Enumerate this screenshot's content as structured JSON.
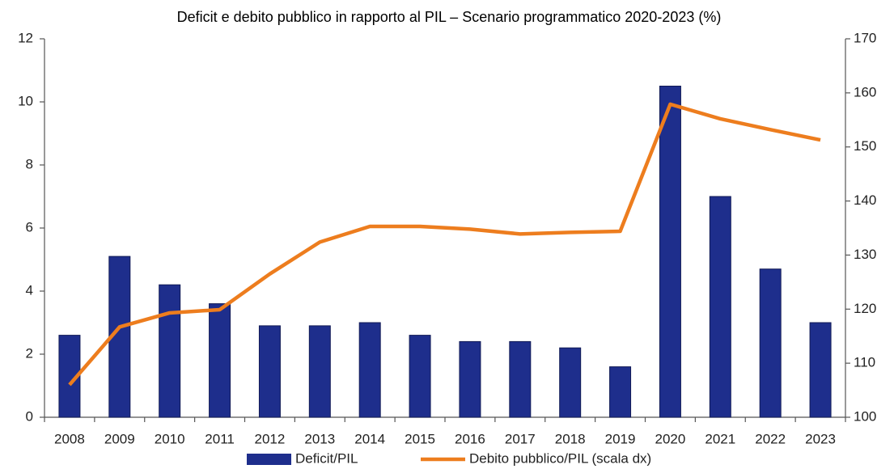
{
  "chart_data": {
    "type": "bar_line",
    "title": "Deficit e debito pubblico in rapporto al PIL – Scenario programmatico 2020-2023 (%)",
    "categories": [
      "2008",
      "2009",
      "2010",
      "2011",
      "2012",
      "2013",
      "2014",
      "2015",
      "2016",
      "2017",
      "2018",
      "2019",
      "2020",
      "2021",
      "2022",
      "2023"
    ],
    "series": [
      {
        "name": "Deficit/PIL",
        "type": "bar",
        "color": "#1e2e8c",
        "axis": "y",
        "values": [
          2.6,
          5.1,
          4.2,
          3.6,
          2.9,
          2.9,
          3.0,
          2.6,
          2.4,
          2.4,
          2.2,
          1.6,
          10.5,
          7.0,
          4.7,
          3.0
        ]
      },
      {
        "name": "Debito pubblico/PIL (scala dx)",
        "type": "line",
        "color": "#ed7d1e",
        "axis": "y2",
        "values": [
          106.0,
          116.7,
          119.3,
          119.9,
          126.5,
          132.4,
          135.3,
          135.3,
          134.8,
          133.9,
          134.2,
          134.4,
          157.9,
          155.2,
          153.2,
          151.3
        ]
      }
    ],
    "ylim": [
      0,
      12
    ],
    "yticks": [
      0,
      2,
      4,
      6,
      8,
      10,
      12
    ],
    "y2lim": [
      100,
      170
    ],
    "y2ticks": [
      100,
      110,
      120,
      130,
      140,
      150,
      160,
      170
    ],
    "legend": "bottom",
    "grid": false
  }
}
